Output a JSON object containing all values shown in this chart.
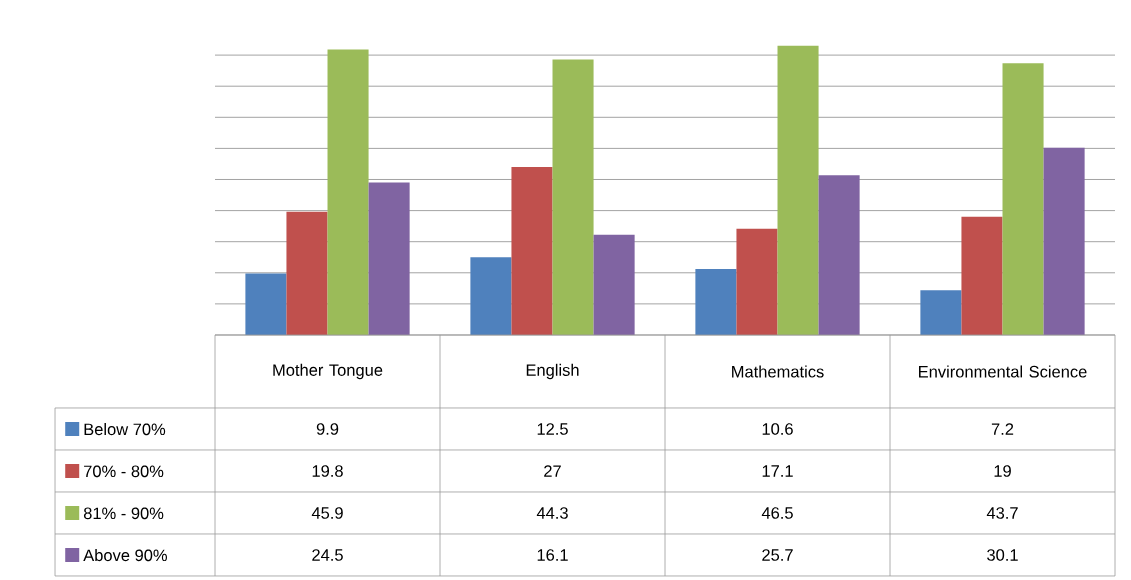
{
  "chart_data": {
    "type": "bar",
    "categories": [
      "Mother Tongue",
      "English",
      "Mathematics",
      "Environmental Science"
    ],
    "series": [
      {
        "name": "Below 70%",
        "color": "#4f81bd",
        "values": [
          9.9,
          12.5,
          10.6,
          7.2
        ]
      },
      {
        "name": "70% - 80%",
        "color": "#c0504d",
        "values": [
          19.8,
          27,
          17.1,
          19
        ]
      },
      {
        "name": "81% - 90%",
        "color": "#9bbb59",
        "values": [
          45.9,
          44.3,
          46.5,
          43.7
        ]
      },
      {
        "name": "Above 90%",
        "color": "#8064a2",
        "values": [
          24.5,
          16.1,
          25.7,
          30.1
        ]
      }
    ],
    "grid": "y",
    "legend": "bottom left",
    "data_labels": true,
    "tick_labels": "x"
  }
}
